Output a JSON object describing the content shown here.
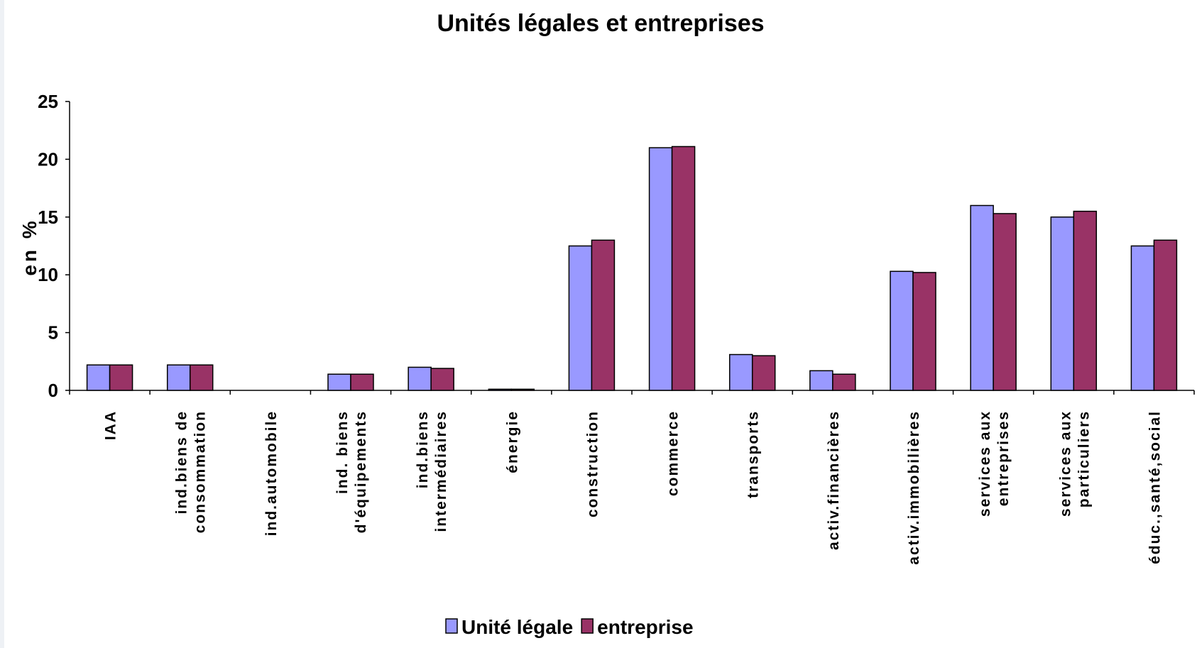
{
  "chart_data": {
    "type": "bar",
    "title": "Unités légales et entreprises",
    "ylabel": "en %",
    "xlabel": "",
    "ylim": [
      0,
      25
    ],
    "yticks": [
      0,
      5,
      10,
      15,
      20,
      25
    ],
    "grid": false,
    "legend_position": "bottom",
    "categories": [
      [
        "IAA"
      ],
      [
        "ind.biens de",
        "consommation"
      ],
      [
        "ind.automobile"
      ],
      [
        "ind. biens",
        "d'équipements"
      ],
      [
        "ind.biens",
        "intermédiaires"
      ],
      [
        "énergie"
      ],
      [
        "construction"
      ],
      [
        "commerce"
      ],
      [
        "transports"
      ],
      [
        "activ.financières"
      ],
      [
        "activ.immobilières"
      ],
      [
        "services aux",
        "entreprises"
      ],
      [
        "services aux",
        "particuliers"
      ],
      [
        "éduc.,santé,social"
      ]
    ],
    "series": [
      {
        "name": "Unité légale",
        "color": "#9999ff",
        "values": [
          2.2,
          2.2,
          0,
          1.4,
          2.0,
          0.1,
          12.5,
          21.0,
          3.1,
          1.7,
          10.3,
          16.0,
          15.0,
          12.5
        ]
      },
      {
        "name": "entreprise",
        "color": "#993366",
        "values": [
          2.2,
          2.2,
          0,
          1.4,
          1.9,
          0.1,
          13.0,
          21.1,
          3.0,
          1.4,
          10.2,
          15.3,
          15.5,
          13.0
        ]
      }
    ]
  }
}
